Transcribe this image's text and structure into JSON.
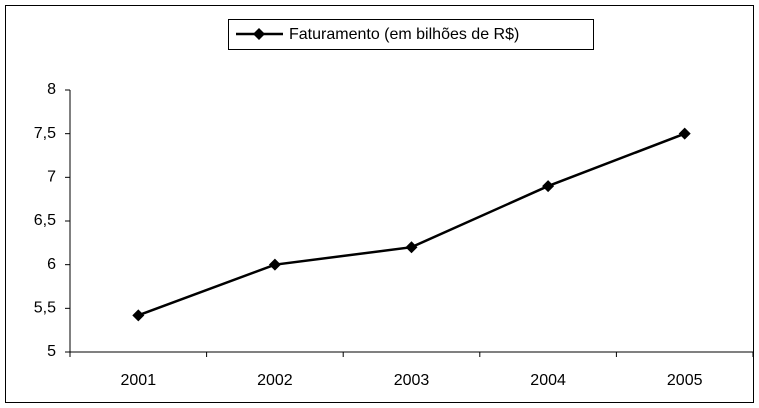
{
  "chart_data": {
    "type": "line",
    "categories": [
      "2001",
      "2002",
      "2003",
      "2004",
      "2005"
    ],
    "series": [
      {
        "name": "Faturamento (em bilhões de R$)",
        "color": "#000000",
        "values": [
          5.42,
          6.0,
          6.2,
          6.9,
          7.5
        ]
      }
    ],
    "ylim": [
      5,
      8
    ],
    "yticks": [
      5,
      {
        "value": 5.5,
        "label": "5,5"
      },
      6,
      {
        "value": 6.5,
        "label": "6,5"
      },
      7,
      {
        "value": 7.5,
        "label": "7,5"
      },
      8
    ],
    "grid": false,
    "legend": "top"
  }
}
